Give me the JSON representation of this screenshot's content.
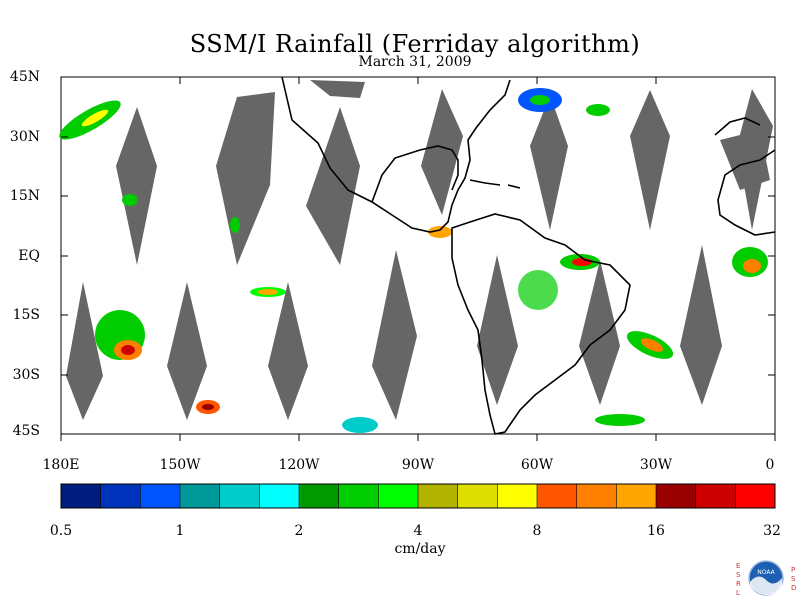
{
  "title": "SSM/I Rainfall (Ferriday algorithm)",
  "subtitle": "March 31, 2009",
  "map": {
    "projection": "equirectangular",
    "lon_range": [
      -180,
      0
    ],
    "lat_range": [
      -45,
      45
    ],
    "land_outline_color": "#000000",
    "no_data_swath_color": "#666666",
    "background_color": "#ffffff"
  },
  "lat_ticks": [
    "45N",
    "30N",
    "15N",
    "EQ",
    "15S",
    "30S",
    "45S"
  ],
  "lon_ticks": [
    "180E",
    "150W",
    "120W",
    "90W",
    "60W",
    "30W",
    "0"
  ],
  "colorbar": {
    "unit": "cm/day",
    "tick_labels": [
      "0.5",
      "1",
      "2",
      "4",
      "8",
      "16",
      "32"
    ],
    "colors": [
      "#001c7f",
      "#0033bb",
      "#0055ff",
      "#009999",
      "#00cccc",
      "#00ffff",
      "#009900",
      "#00cc00",
      "#00ff00",
      "#b2b200",
      "#dddd00",
      "#ffff00",
      "#ff5500",
      "#ff7f00",
      "#ffa500",
      "#990000",
      "#cc0000",
      "#ff0000"
    ]
  },
  "logo": {
    "letters_left": [
      "E",
      "S",
      "R",
      "L"
    ],
    "letters_right": [
      "P",
      "S",
      "D"
    ],
    "center_text": "NOAA"
  }
}
